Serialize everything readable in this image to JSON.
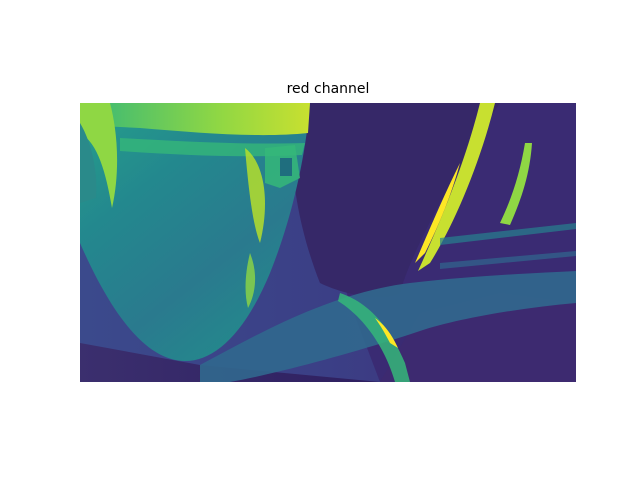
{
  "figure": {
    "title": "red channel"
  },
  "colormap": {
    "name": "viridis",
    "dark": "#440154",
    "deep": "#3b1f6b",
    "indigo": "#3b4a8c",
    "blue": "#31688e",
    "teal": "#26828e",
    "green": "#1f9e89",
    "light_green": "#35b779",
    "lime": "#8fd744",
    "yellow": "#fde725"
  }
}
